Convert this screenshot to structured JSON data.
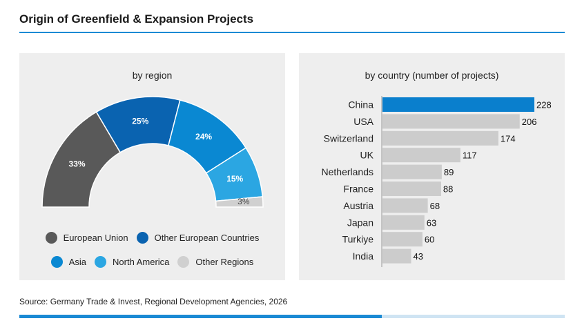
{
  "title": "Origin of Greenfield & Expansion Projects",
  "source": "Source: Germany Trade & Invest, Regional Development Agencies, 2026",
  "chart_data": [
    {
      "type": "pie",
      "subtype": "semi-donut",
      "title": "by region",
      "slices": [
        {
          "name": "European Union",
          "value": 33,
          "label": "33%",
          "color": "#595959"
        },
        {
          "name": "Other European Countries",
          "value": 25,
          "label": "25%",
          "color": "#0a63b0"
        },
        {
          "name": "Asia",
          "value": 24,
          "label": "24%",
          "color": "#0a88d2"
        },
        {
          "name": "North America",
          "value": 15,
          "label": "15%",
          "color": "#2ba6e2"
        },
        {
          "name": "Other Regions",
          "value": 3,
          "label": "3%",
          "color": "#d0d0d0"
        }
      ],
      "legend_rows": [
        [
          0,
          1
        ],
        [
          2,
          3,
          4
        ]
      ],
      "legend_position": "bottom"
    },
    {
      "type": "bar",
      "orientation": "horizontal",
      "title": "by country (number of projects)",
      "categories": [
        "China",
        "USA",
        "Switzerland",
        "UK",
        "Netherlands",
        "France",
        "Austria",
        "Japan",
        "Turkiye",
        "India"
      ],
      "values": [
        228,
        206,
        174,
        117,
        89,
        88,
        68,
        63,
        60,
        43
      ],
      "highlight_color": "#0a7fcd",
      "bar_color": "#cccccc",
      "xlim": [
        0,
        228
      ]
    }
  ]
}
